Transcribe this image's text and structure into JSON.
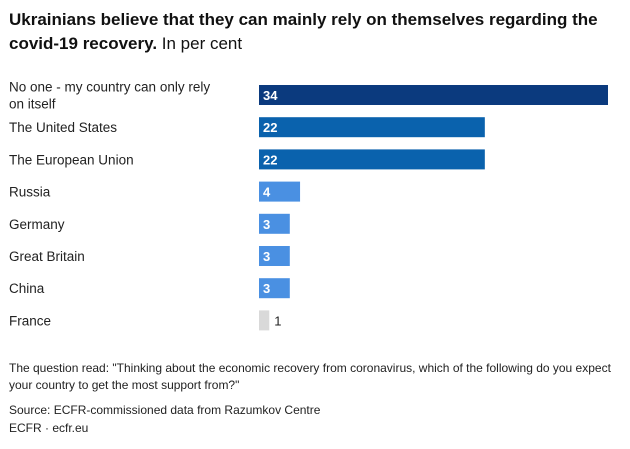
{
  "header": {
    "title": "Ukrainians believe that they can mainly rely on themselves regarding the covid-19 recovery.",
    "subtitle": "In per cent"
  },
  "chart_data": {
    "type": "bar",
    "orientation": "horizontal",
    "title": "Ukrainians believe that they can mainly rely on themselves regarding the covid-19 recovery.",
    "subtitle": "In per cent",
    "categories": [
      [
        "No one - my country can only rely",
        "on itself"
      ],
      [
        "The United States"
      ],
      [
        "The European Union"
      ],
      [
        "Russia"
      ],
      [
        "Germany"
      ],
      [
        "Great Britain"
      ],
      [
        "China"
      ],
      [
        "France"
      ]
    ],
    "values": [
      34,
      22,
      22,
      4,
      3,
      3,
      3,
      1
    ],
    "colors": [
      "#0b3a7e",
      "#0a62ad",
      "#0a62ad",
      "#4a90e2",
      "#4a90e2",
      "#4a90e2",
      "#4a90e2",
      "#d9d9d9"
    ],
    "xlim": [
      0,
      34
    ],
    "unit": "per cent"
  },
  "footer": {
    "note": "The question read: \"Thinking about the economic recovery from coronavirus, which of the following do you expect your country to get the most support from?\"",
    "source": "Source: ECFR-commissioned data from Razumkov Centre",
    "credit": "ECFR · ecfr.eu"
  }
}
